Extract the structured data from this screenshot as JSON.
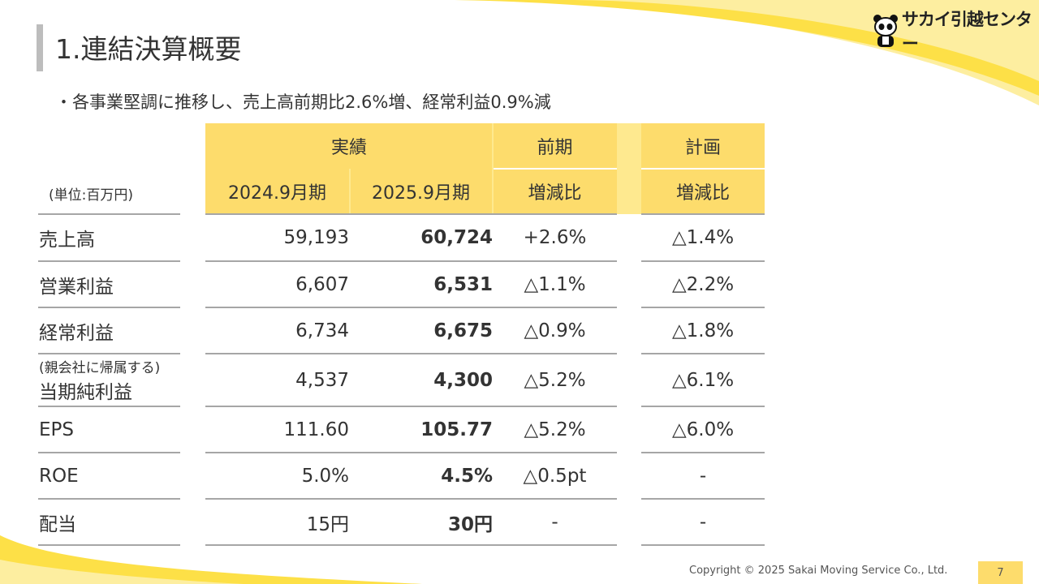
{
  "header": {
    "title": "1.連結決算概要",
    "subtitle": "・各事業堅調に推移し、売上高前期比2.6%増、経常利益0.9%減"
  },
  "logo": {
    "text": "サカイ引越センター",
    "icon": "panda-icon"
  },
  "colors": {
    "accent": "#fddc6c",
    "accent_light": "#fee98f",
    "rule": "#a6a6a6"
  },
  "table": {
    "unit": "(単位:百万円)",
    "group_headers": [
      "実績",
      "前期",
      "計画"
    ],
    "sub_headers": [
      "2024.9月期",
      "2025.9月期",
      "増減比",
      "増減比"
    ],
    "rows": [
      {
        "label": "売上高",
        "prev": "59,193",
        "curr": "60,724",
        "yoy": "+2.6%",
        "plan": "△1.4%"
      },
      {
        "label": "営業利益",
        "prev": "6,607",
        "curr": "6,531",
        "yoy": "△1.1%",
        "plan": "△2.2%"
      },
      {
        "label": "経常利益",
        "prev": "6,734",
        "curr": "6,675",
        "yoy": "△0.9%",
        "plan": "△1.8%"
      },
      {
        "label_small": "(親会社に帰属する)",
        "label": "当期純利益",
        "prev": "4,537",
        "curr": "4,300",
        "yoy": "△5.2%",
        "plan": "△6.1%"
      },
      {
        "label": "EPS",
        "prev": "111.60",
        "curr": "105.77",
        "yoy": "△5.2%",
        "plan": "△6.0%"
      },
      {
        "label": "ROE",
        "prev": "5.0%",
        "curr": "4.5%",
        "yoy": "△0.5pt",
        "plan": "-"
      },
      {
        "label": "配当",
        "prev": "15円",
        "curr": "30円",
        "yoy": "-",
        "plan": "-"
      }
    ]
  },
  "footer": {
    "copyright": "Copyright © 2025 Sakai Moving Service Co., Ltd.",
    "page": "7"
  }
}
